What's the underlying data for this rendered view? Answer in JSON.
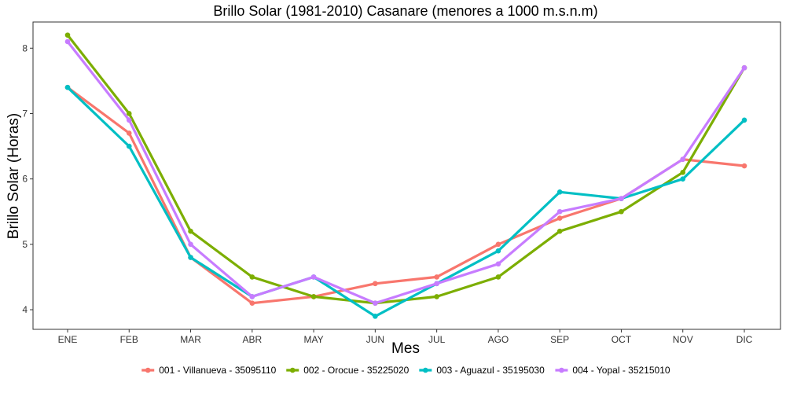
{
  "chart_data": {
    "type": "line",
    "title": "Brillo Solar (1981-2010) Casanare (menores a 1000 m.s.n.m)",
    "xlabel": "Mes",
    "ylabel": "Brillo Solar (Horas)",
    "categories": [
      "ENE",
      "FEB",
      "MAR",
      "ABR",
      "MAY",
      "JUN",
      "JUL",
      "AGO",
      "SEP",
      "OCT",
      "NOV",
      "DIC"
    ],
    "ylim": [
      3.7,
      8.4
    ],
    "yticks": [
      4,
      5,
      6,
      7,
      8
    ],
    "legend_position": "bottom",
    "grid": false,
    "series": [
      {
        "name": "001 - Villanueva - 35095110",
        "color": "#F8766D",
        "values": [
          7.4,
          6.7,
          4.8,
          4.1,
          4.2,
          4.4,
          4.5,
          5.0,
          5.4,
          5.7,
          6.3,
          6.2
        ]
      },
      {
        "name": "002 - Orocue - 35225020",
        "color": "#7CAE00",
        "values": [
          8.2,
          7.0,
          5.2,
          4.5,
          4.2,
          4.1,
          4.2,
          4.5,
          5.2,
          5.5,
          6.1,
          7.7
        ]
      },
      {
        "name": "003 - Aguazul - 35195030",
        "color": "#00BFC4",
        "values": [
          7.4,
          6.5,
          4.8,
          4.2,
          4.5,
          3.9,
          4.4,
          4.9,
          5.8,
          5.7,
          6.0,
          6.9
        ]
      },
      {
        "name": "004 - Yopal - 35215010",
        "color": "#C77CFF",
        "values": [
          8.1,
          6.9,
          5.0,
          4.2,
          4.5,
          4.1,
          4.4,
          4.7,
          5.5,
          5.7,
          6.3,
          7.7
        ]
      }
    ]
  }
}
